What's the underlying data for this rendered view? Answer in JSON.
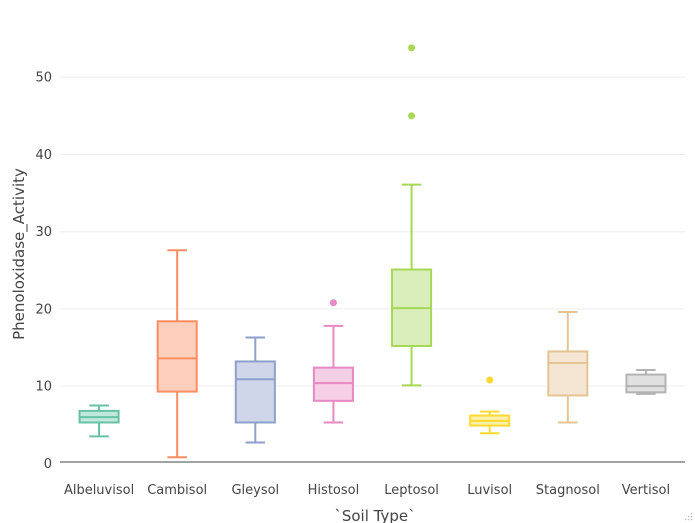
{
  "chart_data": {
    "type": "box",
    "title": "",
    "xlabel": "`Soil Type`",
    "ylabel": "Phenoloxidase_Activity",
    "ylim": [
      -1.5,
      56.5
    ],
    "yticks": [
      0,
      10,
      20,
      30,
      40,
      50
    ],
    "grid": true,
    "legend": "none",
    "categories": [
      "Albeluvisol",
      "Cambisol",
      "Gleysol",
      "Histosol",
      "Leptosol",
      "Luvisol",
      "Stagnosol",
      "Vertisol"
    ],
    "boxes": [
      {
        "category": "Albeluvisol",
        "color": "#66c2a5",
        "fill": "#c2e7db",
        "min": 3.5,
        "q1": 5.3,
        "median": 6.0,
        "q3": 6.8,
        "max": 7.5,
        "outliers": []
      },
      {
        "category": "Cambisol",
        "color": "#fc8d62",
        "fill": "#fecfbd",
        "min": 0.8,
        "q1": 9.3,
        "median": 13.6,
        "q3": 18.4,
        "max": 27.6,
        "outliers": []
      },
      {
        "category": "Gleysol",
        "color": "#8da0cb",
        "fill": "#cfd6e9",
        "min": 2.7,
        "q1": 5.3,
        "median": 10.9,
        "q3": 13.2,
        "max": 16.3,
        "outliers": []
      },
      {
        "category": "Histosol",
        "color": "#e78ac3",
        "fill": "#f5cfe6",
        "min": 5.3,
        "q1": 8.1,
        "median": 10.4,
        "q3": 12.4,
        "max": 17.8,
        "outliers": [
          20.8
        ]
      },
      {
        "category": "Leptosol",
        "color": "#a6d854",
        "fill": "#d9eebb",
        "min": 10.1,
        "q1": 15.2,
        "median": 20.1,
        "q3": 25.1,
        "max": 36.1,
        "outliers": [
          45.0,
          53.8
        ]
      },
      {
        "category": "Luvisol",
        "color": "#ffd92f",
        "fill": "#fff0ab",
        "min": 3.9,
        "q1": 4.9,
        "median": 5.5,
        "q3": 6.2,
        "max": 6.7,
        "outliers": [
          10.8
        ]
      },
      {
        "category": "Stagnosol",
        "color": "#e5c494",
        "fill": "#f4e6d2",
        "min": 5.3,
        "q1": 8.8,
        "median": 13.0,
        "q3": 14.5,
        "max": 19.6,
        "outliers": []
      },
      {
        "category": "Vertisol",
        "color": "#b3b3b3",
        "fill": "#e0e0e0",
        "min": 9.0,
        "q1": 9.2,
        "median": 10.0,
        "q3": 11.5,
        "max": 12.1,
        "outliers": []
      }
    ]
  }
}
